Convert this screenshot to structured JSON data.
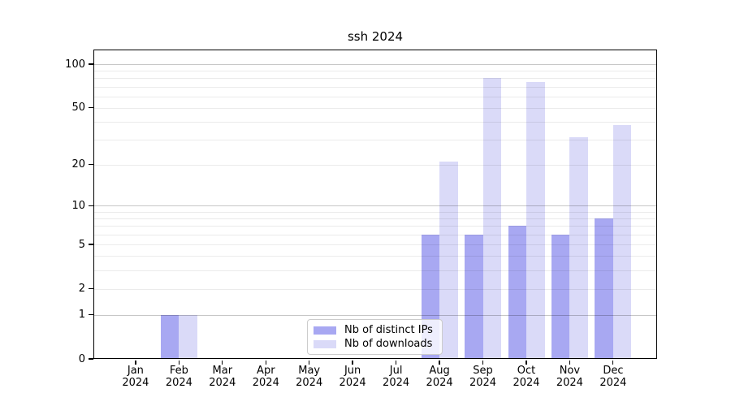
{
  "chart_data": {
    "type": "bar",
    "title": "ssh 2024",
    "categories": [
      "Jan",
      "Feb",
      "Mar",
      "Apr",
      "May",
      "Jun",
      "Jul",
      "Aug",
      "Sep",
      "Oct",
      "Nov",
      "Dec"
    ],
    "category_year": "2024",
    "series": [
      {
        "name": "Nb of distinct IPs",
        "color": "#a8a8f2",
        "values": [
          0,
          1,
          0,
          0,
          0,
          0,
          0,
          6,
          6,
          7,
          6,
          8
        ]
      },
      {
        "name": "Nb of downloads",
        "color": "#dadaf8",
        "values": [
          0,
          1,
          0,
          0,
          0,
          0,
          0,
          21,
          80,
          75,
          31,
          38
        ]
      }
    ],
    "yscale": "log1p",
    "ylim": [
      0,
      126
    ],
    "yticks": [
      0,
      1,
      2,
      5,
      10,
      20,
      50,
      100
    ],
    "major_gridlines": [
      1,
      10,
      100
    ],
    "minor_gridlines": [
      2,
      3,
      4,
      5,
      6,
      7,
      8,
      9,
      20,
      30,
      40,
      50,
      60,
      70,
      80,
      90
    ],
    "grid": true,
    "legend_position": "lower center",
    "colors": {
      "major_grid": "#c9c9c9",
      "minor_grid": "#ebebeb",
      "spine": "#000000",
      "background": "#ffffff"
    }
  }
}
